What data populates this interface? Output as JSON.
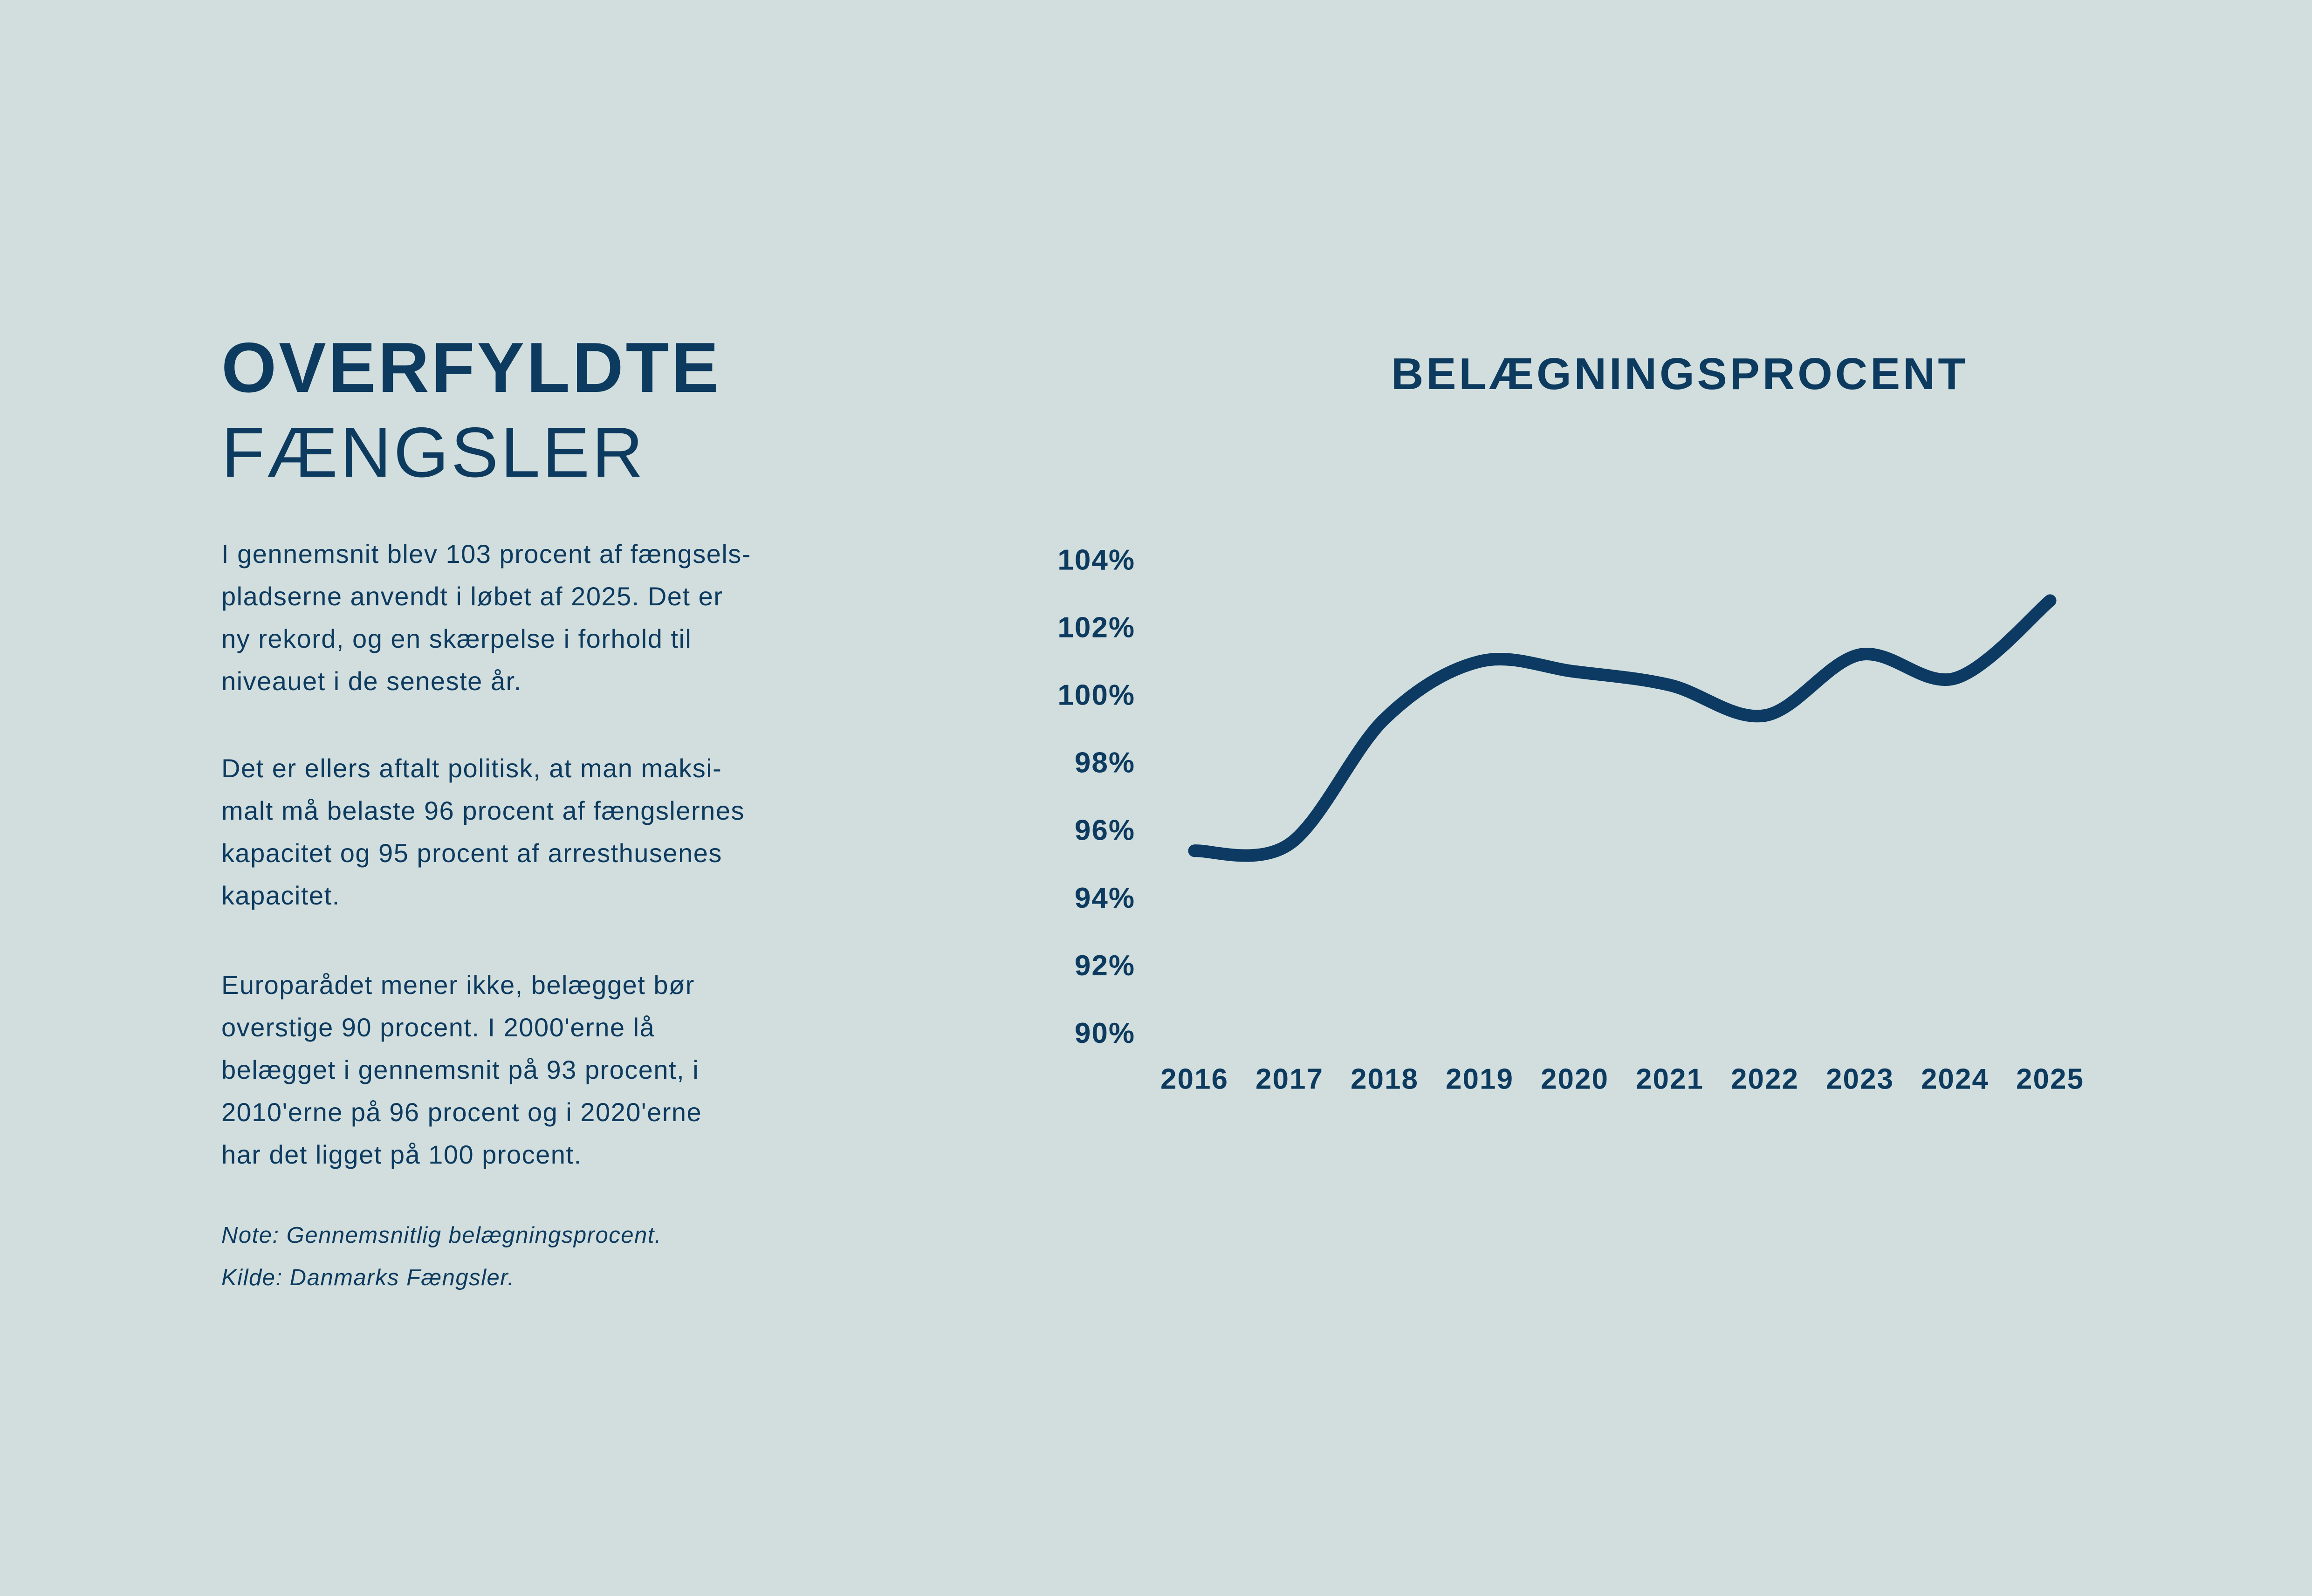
{
  "page": {
    "background_color": "#d1dedd",
    "accent_color": "#0d3a5f"
  },
  "left": {
    "title_line1": "OVERFYLDTE",
    "title_line2": "FÆNGSLER",
    "paragraphs": [
      "I gennemsnit blev 103 procent af fængsels-\npladserne anvendt i løbet af 2025. Det er\nny rekord, og en skærpelse i forhold til\nniveauet i de seneste år.",
      "Det er ellers aftalt politisk, at man maksi-\nmalt må belaste 96 procent af fængslernes\nkapacitet og 95 procent af arresthusenes\nkapacitet.",
      "Europarådet mener ikke, belægget bør\noverstige 90 procent. I 2000'erne lå\nbelægget i gennemsnit på 93 procent, i\n2010'erne på 96 procent og i 2020'erne\nhar det ligget på 100 procent."
    ],
    "note": "Note: Gennemsnitlig belægningsprocent.\nKilde: Danmarks Fængsler."
  },
  "chart": {
    "title": "BELÆGNINGSPROCENT"
  },
  "chart_data": {
    "type": "line",
    "title": "BELÆGNINGSPROCENT",
    "x": [
      2016,
      2017,
      2018,
      2019,
      2020,
      2021,
      2022,
      2023,
      2024,
      2025
    ],
    "values": [
      95.4,
      95.6,
      99.3,
      101.0,
      100.7,
      100.3,
      99.4,
      101.2,
      100.5,
      102.8
    ],
    "series_name": "Gennemsnitlig belægningsprocent",
    "xlabel": "",
    "ylabel": "",
    "y_ticks": [
      104,
      102,
      100,
      98,
      96,
      94,
      92,
      90
    ],
    "y_tick_suffix": "%",
    "ylim": [
      89.5,
      105
    ],
    "grid": false,
    "legend": false,
    "line_color": "#0c3a63",
    "line_width": 27
  }
}
